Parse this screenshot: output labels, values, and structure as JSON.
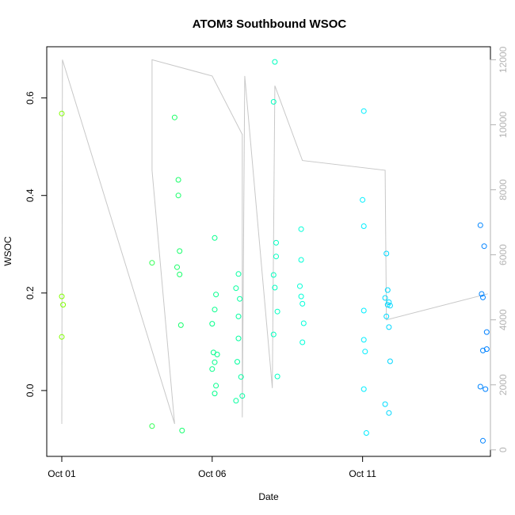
{
  "chart_data": {
    "type": "scatter",
    "title": "ATOM3 Southbound WSOC",
    "xlabel": "Date",
    "ylabel": "WSOC",
    "x_axis": {
      "type": "date",
      "range": [
        "2016-09-30T12:00",
        "2016-10-15T06:00"
      ],
      "ticks": [
        {
          "value": "2016-10-01T00:00",
          "label": "Oct 01"
        },
        {
          "value": "2016-10-06T00:00",
          "label": "Oct 06"
        },
        {
          "value": "2016-10-11T00:00",
          "label": "Oct 11"
        }
      ]
    },
    "y_axis": {
      "range": [
        -0.135,
        0.705
      ],
      "ticks": [
        {
          "value": 0.0,
          "label": "0.0"
        },
        {
          "value": 0.2,
          "label": "0.2"
        },
        {
          "value": 0.4,
          "label": "0.4"
        },
        {
          "value": 0.6,
          "label": "0.6"
        }
      ]
    },
    "y2_axis": {
      "position": "right",
      "color": "#b3b3b3",
      "range": [
        -200,
        12400
      ],
      "ticks": [
        {
          "value": 0,
          "label": "0"
        },
        {
          "value": 2000,
          "label": "2000"
        },
        {
          "value": 4000,
          "label": "4000"
        },
        {
          "value": 6000,
          "label": "6000"
        },
        {
          "value": 8000,
          "label": "8000"
        },
        {
          "value": 10000,
          "label": "10000"
        },
        {
          "value": 12000,
          "label": "12000"
        }
      ]
    },
    "grid": false,
    "legend": "none",
    "points_color_gradient": [
      "#80ff00",
      "#00ff80",
      "#00ffff",
      "#0080ff"
    ],
    "points": [
      {
        "x": "2016-10-01T00:00",
        "y": 0.568
      },
      {
        "x": "2016-10-01T00:00",
        "y": 0.193
      },
      {
        "x": "2016-10-01T01:00",
        "y": 0.176
      },
      {
        "x": "2016-10-01T00:00",
        "y": 0.11
      },
      {
        "x": "2016-10-04T00:00",
        "y": 0.262
      },
      {
        "x": "2016-10-04T00:00",
        "y": -0.073
      },
      {
        "x": "2016-10-04T18:00",
        "y": 0.56
      },
      {
        "x": "2016-10-04T21:00",
        "y": 0.432
      },
      {
        "x": "2016-10-04T21:00",
        "y": 0.4
      },
      {
        "x": "2016-10-04T22:00",
        "y": 0.286
      },
      {
        "x": "2016-10-04T20:00",
        "y": 0.253
      },
      {
        "x": "2016-10-04T22:00",
        "y": 0.238
      },
      {
        "x": "2016-10-04T23:00",
        "y": 0.134
      },
      {
        "x": "2016-10-05T00:00",
        "y": -0.082
      },
      {
        "x": "2016-10-06T02:00",
        "y": 0.313
      },
      {
        "x": "2016-10-06T03:00",
        "y": 0.197
      },
      {
        "x": "2016-10-06T02:00",
        "y": 0.166
      },
      {
        "x": "2016-10-06T00:00",
        "y": 0.137
      },
      {
        "x": "2016-10-06T01:00",
        "y": 0.078
      },
      {
        "x": "2016-10-06T04:00",
        "y": 0.074
      },
      {
        "x": "2016-10-06T02:00",
        "y": 0.058
      },
      {
        "x": "2016-10-06T00:00",
        "y": 0.044
      },
      {
        "x": "2016-10-06T03:00",
        "y": 0.01
      },
      {
        "x": "2016-10-06T02:00",
        "y": -0.006
      },
      {
        "x": "2016-10-06T21:00",
        "y": 0.239
      },
      {
        "x": "2016-10-06T19:00",
        "y": 0.21
      },
      {
        "x": "2016-10-06T22:00",
        "y": 0.188
      },
      {
        "x": "2016-10-06T21:00",
        "y": 0.152
      },
      {
        "x": "2016-10-06T21:00",
        "y": 0.107
      },
      {
        "x": "2016-10-06T20:00",
        "y": 0.059
      },
      {
        "x": "2016-10-06T23:00",
        "y": 0.028
      },
      {
        "x": "2016-10-06T19:00",
        "y": -0.021
      },
      {
        "x": "2016-10-07T00:00",
        "y": -0.011
      },
      {
        "x": "2016-10-08T02:00",
        "y": 0.674
      },
      {
        "x": "2016-10-08T01:00",
        "y": 0.592
      },
      {
        "x": "2016-10-08T03:00",
        "y": 0.303
      },
      {
        "x": "2016-10-08T03:00",
        "y": 0.275
      },
      {
        "x": "2016-10-08T01:00",
        "y": 0.237
      },
      {
        "x": "2016-10-08T02:00",
        "y": 0.211
      },
      {
        "x": "2016-10-08T04:00",
        "y": 0.162
      },
      {
        "x": "2016-10-08T01:00",
        "y": 0.115
      },
      {
        "x": "2016-10-08T04:00",
        "y": 0.029
      },
      {
        "x": "2016-10-08T23:00",
        "y": 0.331
      },
      {
        "x": "2016-10-08T23:00",
        "y": 0.268
      },
      {
        "x": "2016-10-08T22:00",
        "y": 0.214
      },
      {
        "x": "2016-10-08T23:00",
        "y": 0.193
      },
      {
        "x": "2016-10-09T00:00",
        "y": 0.178
      },
      {
        "x": "2016-10-09T01:00",
        "y": 0.138
      },
      {
        "x": "2016-10-09T00:00",
        "y": 0.099
      },
      {
        "x": "2016-10-11T01:00",
        "y": 0.573
      },
      {
        "x": "2016-10-11T00:00",
        "y": 0.391
      },
      {
        "x": "2016-10-11T01:00",
        "y": 0.337
      },
      {
        "x": "2016-10-11T01:00",
        "y": 0.164
      },
      {
        "x": "2016-10-11T01:00",
        "y": 0.104
      },
      {
        "x": "2016-10-11T02:00",
        "y": 0.08
      },
      {
        "x": "2016-10-11T01:00",
        "y": 0.003
      },
      {
        "x": "2016-10-11T03:00",
        "y": -0.087
      },
      {
        "x": "2016-10-11T19:00",
        "y": 0.281
      },
      {
        "x": "2016-10-11T18:00",
        "y": 0.19
      },
      {
        "x": "2016-10-11T21:00",
        "y": 0.181
      },
      {
        "x": "2016-10-11T20:00",
        "y": 0.176
      },
      {
        "x": "2016-10-11T22:00",
        "y": 0.174
      },
      {
        "x": "2016-10-11T19:00",
        "y": 0.152
      },
      {
        "x": "2016-10-11T21:00",
        "y": 0.13
      },
      {
        "x": "2016-10-11T20:00",
        "y": 0.206
      },
      {
        "x": "2016-10-11T22:00",
        "y": 0.06
      },
      {
        "x": "2016-10-11T18:00",
        "y": -0.028
      },
      {
        "x": "2016-10-11T21:00",
        "y": -0.046
      },
      {
        "x": "2016-10-14T22:00",
        "y": 0.339
      },
      {
        "x": "2016-10-15T01:00",
        "y": 0.296
      },
      {
        "x": "2016-10-14T23:00",
        "y": 0.198
      },
      {
        "x": "2016-10-15T00:00",
        "y": 0.191
      },
      {
        "x": "2016-10-15T03:00",
        "y": 0.12
      },
      {
        "x": "2016-10-15T03:00",
        "y": 0.085
      },
      {
        "x": "2016-10-15T00:00",
        "y": 0.082
      },
      {
        "x": "2016-10-14T22:00",
        "y": 0.008
      },
      {
        "x": "2016-10-15T02:00",
        "y": 0.003
      },
      {
        "x": "2016-10-15T00:00",
        "y": -0.103
      }
    ],
    "altitude_series": {
      "axis": "y2",
      "color": "#c8c8c8",
      "values": [
        {
          "x": "2016-10-01T00:00",
          "y": 800
        },
        {
          "x": "2016-10-01T00:30",
          "y": 12000
        },
        {
          "x": "2016-10-04T18:00",
          "y": 800
        },
        {
          "x": "2016-10-04T00:00",
          "y": 8600
        },
        {
          "x": "2016-10-04T00:00",
          "y": 12000
        },
        {
          "x": "2016-10-06T00:00",
          "y": 11500
        },
        {
          "x": "2016-10-07T00:00",
          "y": 9700
        },
        {
          "x": "2016-10-07T00:00",
          "y": 1000
        },
        {
          "x": "2016-10-07T02:00",
          "y": 11500
        },
        {
          "x": "2016-10-08T00:00",
          "y": 1900
        },
        {
          "x": "2016-10-08T02:00",
          "y": 11200
        },
        {
          "x": "2016-10-09T00:00",
          "y": 8900
        },
        {
          "x": "2016-10-11T18:00",
          "y": 8600
        },
        {
          "x": "2016-10-11T19:00",
          "y": 4000
        },
        {
          "x": "2016-10-15T04:00",
          "y": 4800
        }
      ]
    }
  }
}
